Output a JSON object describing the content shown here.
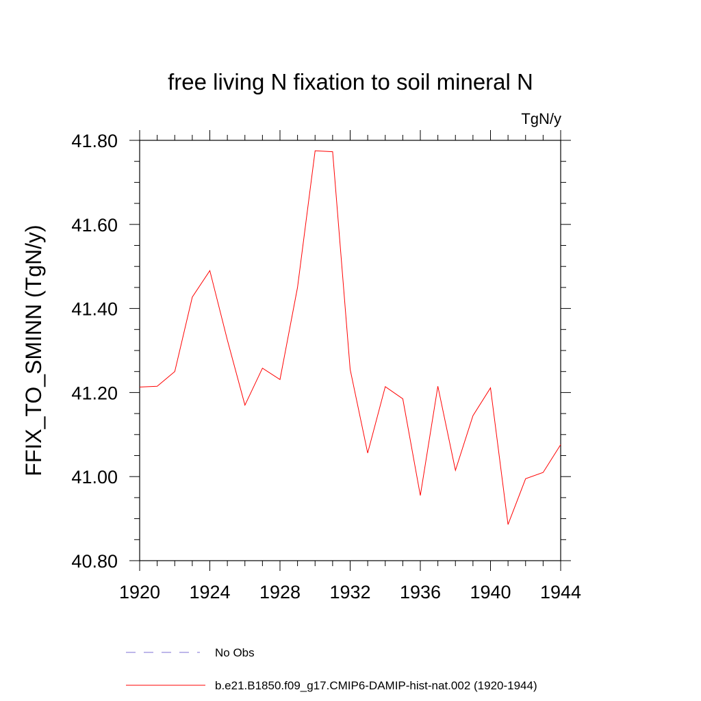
{
  "chart_data": {
    "type": "line",
    "title": "free living N fixation to soil mineral N",
    "units_label": "TgN/y",
    "ylabel": "FFIX_TO_SMINN  (TgN/y)",
    "xlabel": "",
    "xlim": [
      1920,
      1944
    ],
    "ylim": [
      40.8,
      41.8
    ],
    "x_ticks": [
      1920,
      1924,
      1928,
      1932,
      1936,
      1940,
      1944
    ],
    "x_tick_labels": [
      "1920",
      "1924",
      "1928",
      "1932",
      "1936",
      "1940",
      "1944"
    ],
    "y_ticks": [
      40.8,
      41.0,
      41.2,
      41.4,
      41.6,
      41.8
    ],
    "y_tick_labels": [
      "40.80",
      "41.00",
      "41.20",
      "41.40",
      "41.60",
      "41.80"
    ],
    "grid": false,
    "legend_position": "bottom",
    "legend": [
      {
        "label": "No Obs",
        "color": "#7d6fd6",
        "style": "dashed"
      },
      {
        "label": "b.e21.B1850.f09_g17.CMIP6-DAMIP-hist-nat.002 (1920-1944)",
        "color": "#ff0000",
        "style": "solid"
      }
    ],
    "series": [
      {
        "name": "b.e21.B1850.f09_g17.CMIP6-DAMIP-hist-nat.002 (1920-1944)",
        "color": "#ff0000",
        "x": [
          1920,
          1921,
          1922,
          1923,
          1924,
          1925,
          1926,
          1927,
          1928,
          1929,
          1930,
          1931,
          1932,
          1933,
          1934,
          1935,
          1936,
          1937,
          1938,
          1939,
          1940,
          1941,
          1942,
          1943,
          1944
        ],
        "y": [
          41.213,
          41.215,
          41.25,
          41.427,
          41.49,
          41.325,
          41.17,
          41.258,
          41.231,
          41.45,
          41.775,
          41.773,
          41.255,
          41.056,
          41.214,
          41.185,
          40.955,
          41.215,
          41.015,
          41.145,
          41.211,
          40.886,
          40.995,
          41.01,
          41.076
        ]
      }
    ]
  }
}
